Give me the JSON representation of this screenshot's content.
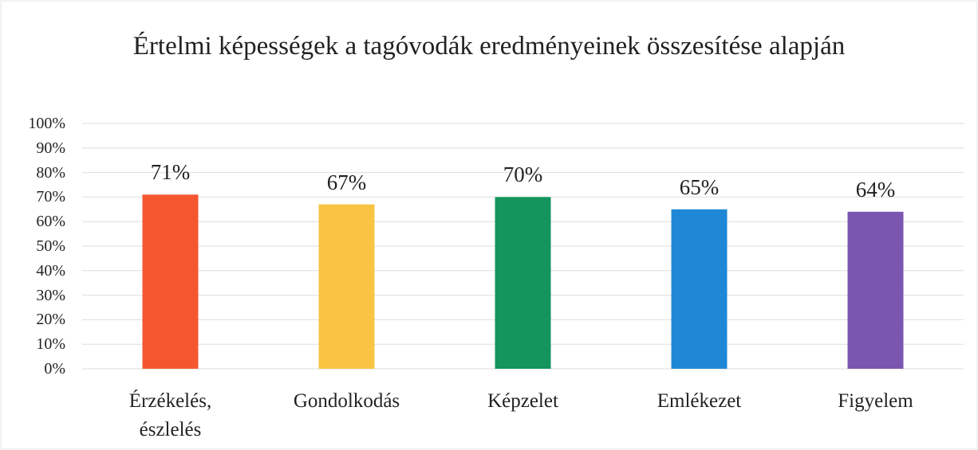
{
  "chart_data": {
    "type": "bar",
    "title": "Értelmi képességek a tagóvodák eredményeinek összesítése alapján",
    "categories": [
      "Érzékelés, észlelés",
      "Gondolkodás",
      "Képzelet",
      "Emlékezet",
      "Figyelem"
    ],
    "values": [
      71,
      67,
      70,
      65,
      64
    ],
    "value_labels": [
      "71%",
      "67%",
      "70%",
      "65%",
      "64%"
    ],
    "colors": [
      "#f4572f",
      "#f8c441",
      "#13955d",
      "#1f88d6",
      "#7b56b0"
    ],
    "ylim": [
      0,
      100
    ],
    "yticks": [
      {
        "value": 0,
        "label": "0%"
      },
      {
        "value": 10,
        "label": "10%"
      },
      {
        "value": 20,
        "label": "20%"
      },
      {
        "value": 30,
        "label": "30%"
      },
      {
        "value": 40,
        "label": "40%"
      },
      {
        "value": 50,
        "label": "50%"
      },
      {
        "value": 60,
        "label": "60%"
      },
      {
        "value": 70,
        "label": "70%"
      },
      {
        "value": 80,
        "label": "80%"
      },
      {
        "value": 90,
        "label": "90%"
      },
      {
        "value": 100,
        "label": "100%"
      }
    ],
    "grid": true
  }
}
